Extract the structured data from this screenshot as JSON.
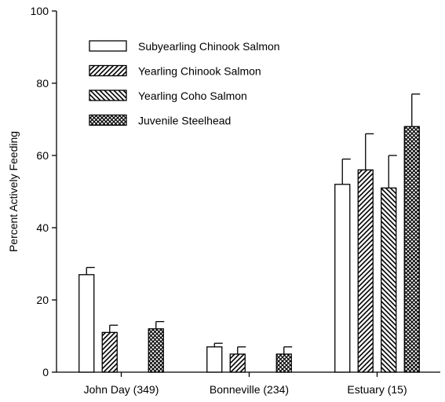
{
  "chart_data": {
    "type": "bar",
    "title": "",
    "xlabel": "",
    "ylabel": "Percent Actively Feeding",
    "ylim": [
      0,
      100
    ],
    "yticks": [
      0,
      20,
      40,
      60,
      80,
      100
    ],
    "categories": [
      "John Day (349)",
      "Bonneville (234)",
      "Estuary (15)"
    ],
    "legend_position": "top-left",
    "grid": false,
    "series": [
      {
        "name": "Subyearling Chinook Salmon",
        "pattern": "none",
        "values": [
          27,
          7,
          52
        ],
        "error": [
          2,
          1,
          7
        ]
      },
      {
        "name": "Yearling Chinook Salmon",
        "pattern": "diagonal-forward",
        "values": [
          11,
          5,
          56
        ],
        "error": [
          2,
          2,
          10
        ]
      },
      {
        "name": "Yearling Coho Salmon",
        "pattern": "diagonal-backward",
        "values": [
          null,
          null,
          51
        ],
        "error": [
          null,
          null,
          9
        ]
      },
      {
        "name": "Juvenile Steelhead",
        "pattern": "crosshatch",
        "values": [
          12,
          5,
          68
        ],
        "error": [
          2,
          2,
          9
        ]
      }
    ],
    "colors": {
      "bar_fill": "#ffffff",
      "stroke": "#000000"
    }
  }
}
